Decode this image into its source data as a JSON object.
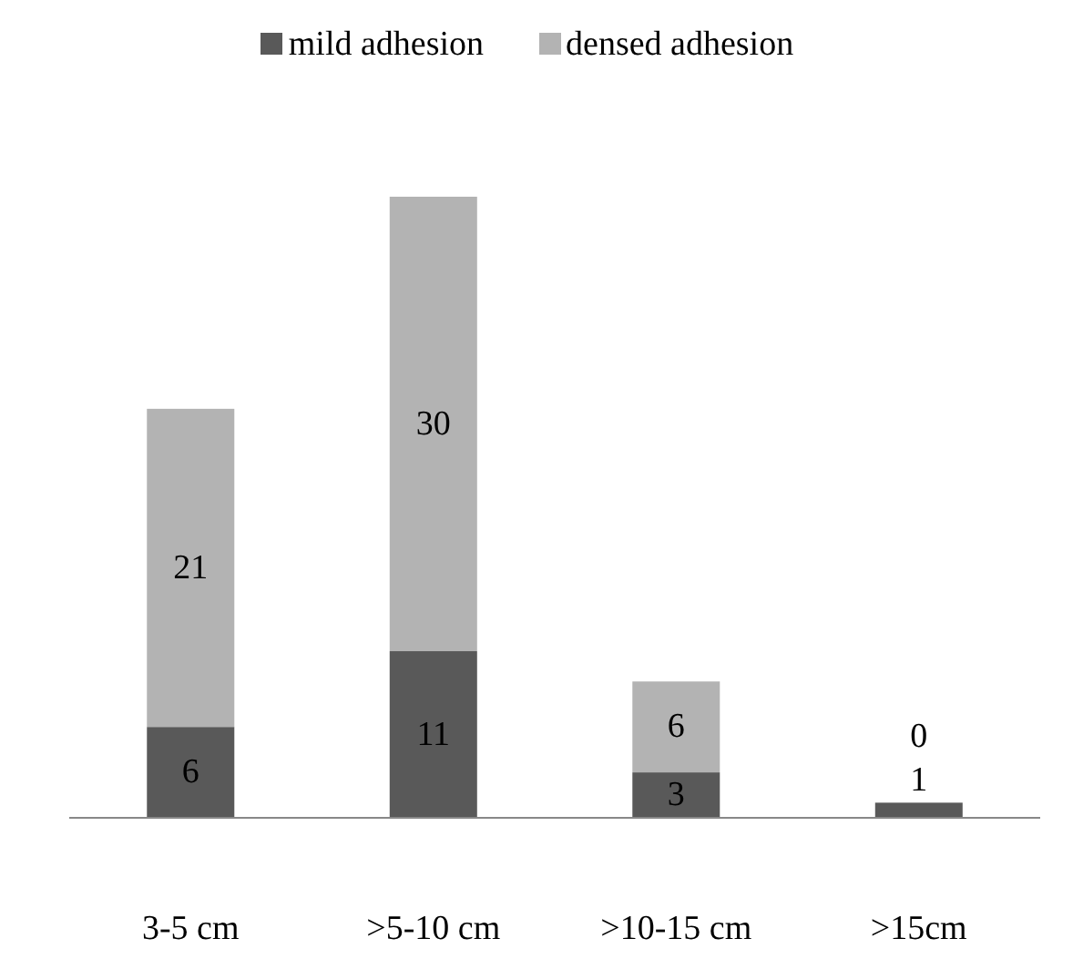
{
  "chart_data": {
    "type": "bar",
    "stacked": true,
    "categories": [
      "3-5 cm",
      ">5-10 cm",
      ">10-15 cm",
      ">15cm"
    ],
    "series": [
      {
        "name": "mild adhesion",
        "color": "#595959",
        "values": [
          6,
          11,
          3,
          1
        ]
      },
      {
        "name": "densed adhesion",
        "color": "#b3b3b3",
        "values": [
          21,
          30,
          6,
          0
        ]
      }
    ],
    "data_labels": true,
    "legend": "top",
    "grid": false,
    "tick_labels": "x"
  }
}
